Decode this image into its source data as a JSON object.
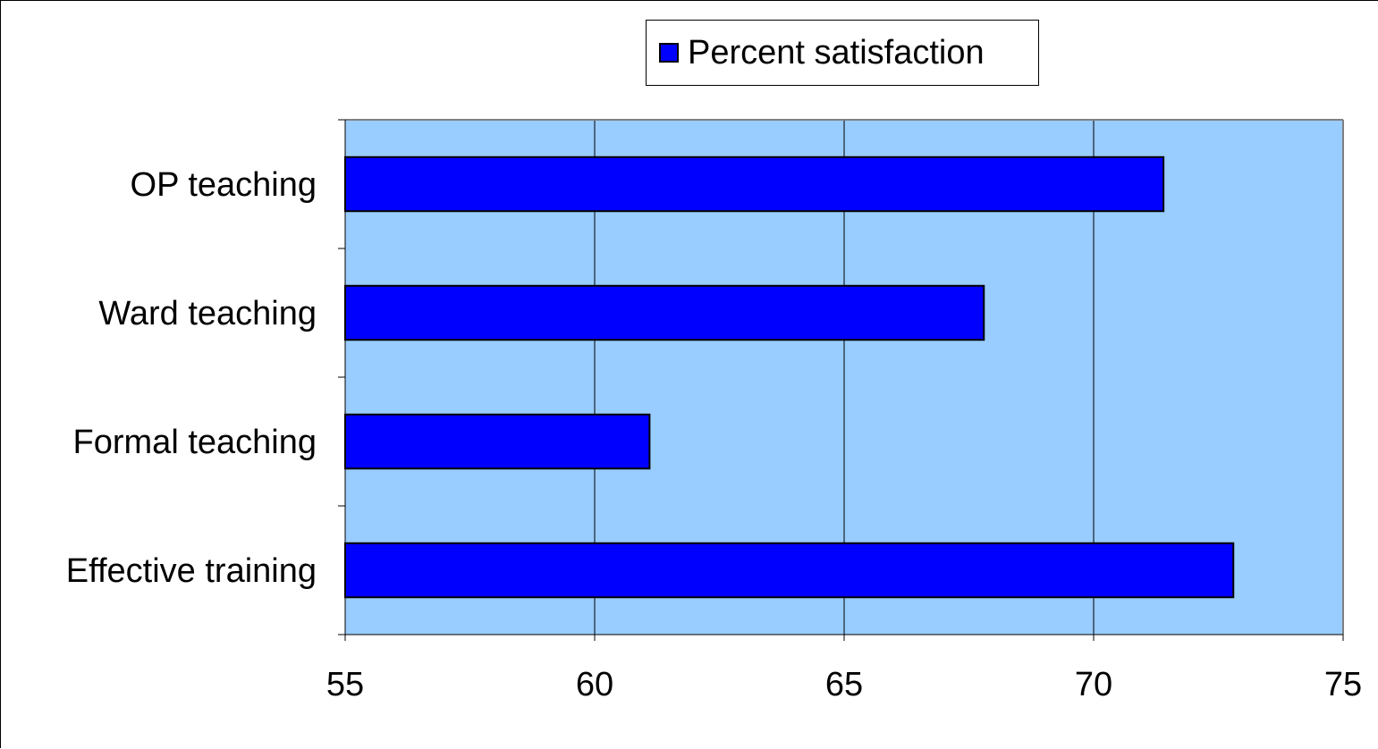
{
  "chart_data": {
    "type": "bar",
    "orientation": "horizontal",
    "title": "",
    "xlabel": "",
    "ylabel": "",
    "categories": [
      "OP teaching",
      "Ward teaching",
      "Formal teaching",
      "Effective training"
    ],
    "series": [
      {
        "name": "Percent satisfaction",
        "values": [
          71.4,
          67.8,
          61.1,
          72.8
        ],
        "color": "#0000ff"
      }
    ],
    "xlim": [
      55,
      75
    ],
    "xticks": [
      "55",
      "60",
      "65",
      "70",
      "75"
    ],
    "grid": "vertical",
    "plot_background": "#99ccff",
    "legend": {
      "placement": "top",
      "label": "Percent satisfaction"
    }
  }
}
